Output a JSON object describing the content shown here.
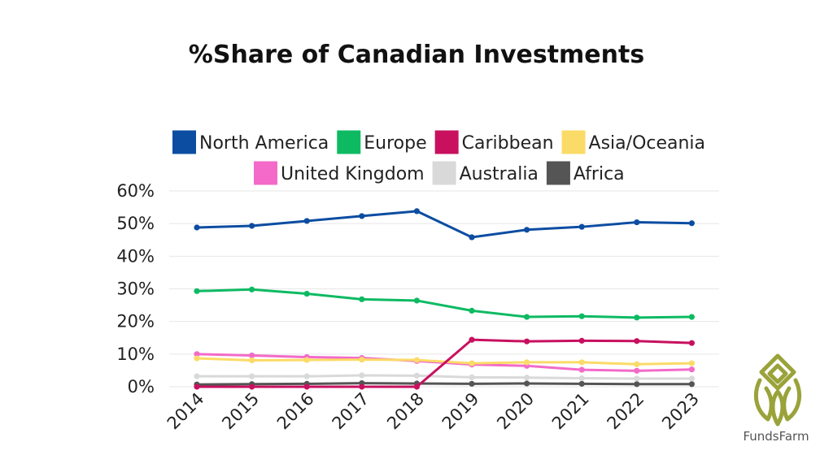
{
  "brand": {
    "name": "FundsFarm",
    "logo_icon": "fundsfarm-leaf-logo-icon",
    "logo_color": "#9aa33a"
  },
  "chart_data": {
    "type": "line",
    "title": "%Share of Canadian Investments",
    "xlabel": "",
    "ylabel": "",
    "x": [
      "2014",
      "2015",
      "2016",
      "2017",
      "2018",
      "2019",
      "2020",
      "2021",
      "2022",
      "2023"
    ],
    "ylim": [
      0,
      60
    ],
    "yticks": [
      "0%",
      "10%",
      "20%",
      "30%",
      "40%",
      "50%",
      "60%"
    ],
    "grid": true,
    "legend_position": "top",
    "series": [
      {
        "name": "North America",
        "color": "#0c4da2",
        "values": [
          48.8,
          49.3,
          50.8,
          52.3,
          53.8,
          45.8,
          48.1,
          49.0,
          50.4,
          50.1
        ]
      },
      {
        "name": "Europe",
        "color": "#0dba62",
        "values": [
          29.3,
          29.8,
          28.5,
          26.8,
          26.4,
          23.3,
          21.4,
          21.6,
          21.2,
          21.4
        ]
      },
      {
        "name": "Caribbean",
        "color": "#c8105f",
        "values": [
          0,
          0,
          0,
          0,
          0,
          14.4,
          13.9,
          14.1,
          14.0,
          13.4
        ]
      },
      {
        "name": "Asia/Oceania",
        "color": "#fbdb67",
        "values": [
          8.7,
          8.1,
          8.2,
          8.3,
          8.2,
          7.2,
          7.5,
          7.5,
          6.9,
          7.2
        ]
      },
      {
        "name": "United Kingdom",
        "color": "#f36ac9",
        "values": [
          10.0,
          9.6,
          9.1,
          8.8,
          7.9,
          6.8,
          6.4,
          5.2,
          4.9,
          5.3
        ]
      },
      {
        "name": "Australia",
        "color": "#d9d9d9",
        "values": [
          3.2,
          3.2,
          3.2,
          3.5,
          3.4,
          2.9,
          2.8,
          2.6,
          2.5,
          2.5
        ]
      },
      {
        "name": "Africa",
        "color": "#555555",
        "values": [
          0.7,
          0.8,
          0.9,
          1.1,
          1.0,
          0.9,
          1.0,
          0.9,
          0.8,
          0.8
        ]
      }
    ]
  }
}
